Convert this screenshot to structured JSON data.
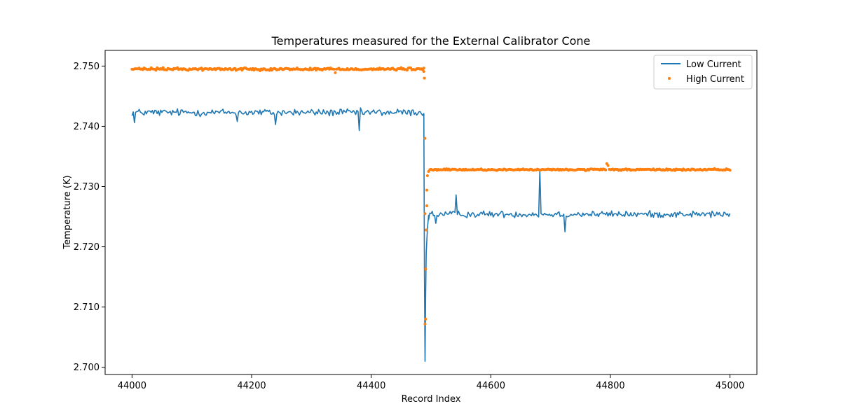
{
  "chart_data": {
    "type": "line+scatter",
    "title": "Temperatures measured for the External Calibrator Cone",
    "xlabel": "Record Index",
    "ylabel": "Temperature (K)",
    "xlim": [
      43955,
      45045
    ],
    "ylim": [
      2.6988,
      2.7526
    ],
    "x_ticks": [
      44000,
      44200,
      44400,
      44600,
      44800,
      45000
    ],
    "x_tick_labels": [
      "44000",
      "44200",
      "44400",
      "44600",
      "44800",
      "45000"
    ],
    "y_ticks": [
      2.7,
      2.71,
      2.72,
      2.73,
      2.74,
      2.75
    ],
    "y_tick_labels": [
      "2.700",
      "2.710",
      "2.720",
      "2.730",
      "2.740",
      "2.750"
    ],
    "legend_position": "upper right",
    "series": [
      {
        "name": "Low Current",
        "kind": "line",
        "color": "#1f77b4",
        "x_start": 44000,
        "x_step": 2,
        "segments": [
          {
            "x_from": 44000,
            "x_to": 44488,
            "mean": 2.7423,
            "noise": 0.0009
          },
          {
            "x_from": 44496,
            "x_to": 45000,
            "mean": 2.7254,
            "noise": 0.0008
          }
        ],
        "transition": [
          {
            "x": 44488,
            "y": 2.742
          },
          {
            "x": 44489,
            "y": 2.716
          },
          {
            "x": 44490,
            "y": 2.701
          },
          {
            "x": 44491,
            "y": 2.712
          },
          {
            "x": 44492,
            "y": 2.719
          },
          {
            "x": 44494,
            "y": 2.723
          },
          {
            "x": 44496,
            "y": 2.7245
          }
        ],
        "spikes": [
          {
            "x": 44004,
            "y": 2.7406
          },
          {
            "x": 44176,
            "y": 2.7408
          },
          {
            "x": 44240,
            "y": 2.7403
          },
          {
            "x": 44380,
            "y": 2.7393
          },
          {
            "x": 44508,
            "y": 2.7239
          },
          {
            "x": 44542,
            "y": 2.7286
          },
          {
            "x": 44682,
            "y": 2.7327
          },
          {
            "x": 44724,
            "y": 2.7225
          }
        ]
      },
      {
        "name": "High Current",
        "kind": "scatter",
        "color": "#ff7f0e",
        "x_start": 44000,
        "x_step": 2,
        "segments": [
          {
            "x_from": 44000,
            "x_to": 44488,
            "mean": 2.7495,
            "noise": 0.0003
          },
          {
            "x_from": 44498,
            "x_to": 45000,
            "mean": 2.7328,
            "noise": 0.0002
          }
        ],
        "transition": [
          {
            "x": 44488,
            "y": 2.7491
          },
          {
            "x": 44489,
            "y": 2.748
          },
          {
            "x": 44490,
            "y": 2.738
          },
          {
            "x": 44490,
            "y": 2.7255
          },
          {
            "x": 44490,
            "y": 2.7072
          },
          {
            "x": 44491,
            "y": 2.708
          },
          {
            "x": 44491,
            "y": 2.7163
          },
          {
            "x": 44492,
            "y": 2.7228
          },
          {
            "x": 44493,
            "y": 2.7268
          },
          {
            "x": 44493,
            "y": 2.7294
          },
          {
            "x": 44494,
            "y": 2.7318
          },
          {
            "x": 44496,
            "y": 2.7325
          }
        ],
        "spikes": [
          {
            "x": 44340,
            "y": 2.7489
          },
          {
            "x": 44794,
            "y": 2.7338
          },
          {
            "x": 44796,
            "y": 2.7335
          }
        ]
      }
    ]
  }
}
